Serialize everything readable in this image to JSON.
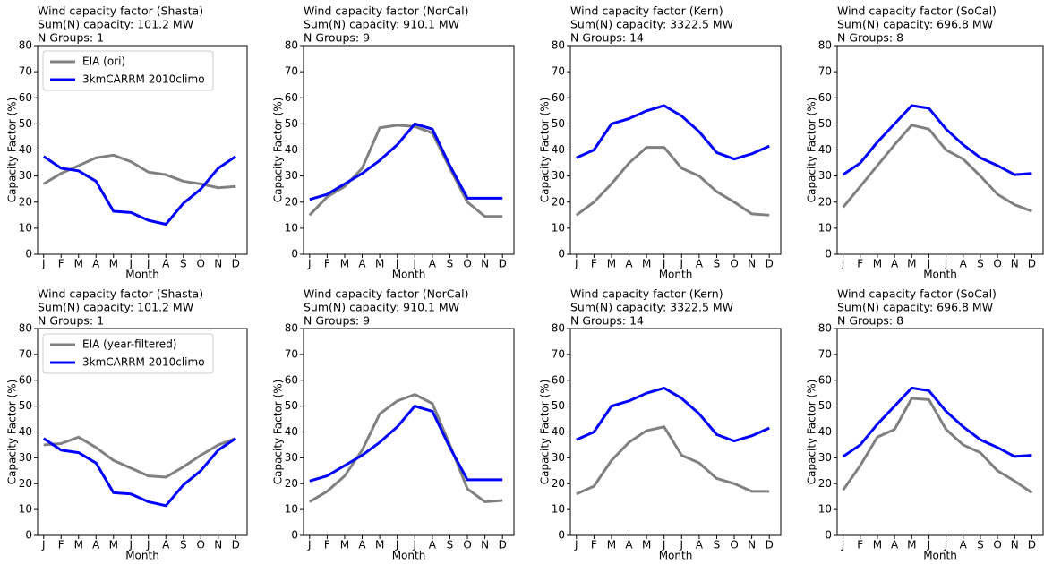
{
  "chart_data": [
    {
      "type": "line",
      "title": "Wind capacity factor (Shasta)",
      "subtitle": [
        "Sum(N) capacity: 101.2 MW",
        "N Groups: 1"
      ],
      "x_label": "Month",
      "y_label": "Capacity Factor (%)",
      "categories": [
        "J",
        "F",
        "M",
        "A",
        "M",
        "J",
        "J",
        "A",
        "S",
        "O",
        "N",
        "D"
      ],
      "ylim": [
        0,
        80
      ],
      "yticks": [
        0,
        10,
        20,
        30,
        40,
        50,
        60,
        70,
        80
      ],
      "legend": "upper left",
      "series": [
        {
          "name": "EIA (ori)",
          "color": "#808080",
          "values": [
            27,
            31,
            34,
            37,
            38,
            35.5,
            31.5,
            30.5,
            28,
            27,
            25.5,
            26
          ]
        },
        {
          "name": "3kmCARRM 2010climo",
          "color": "#0000ff",
          "values": [
            37.5,
            33,
            32,
            28,
            16.5,
            16,
            13,
            11.5,
            19.5,
            25,
            33,
            37.5
          ]
        }
      ]
    },
    {
      "type": "line",
      "title": "Wind capacity factor (NorCal)",
      "subtitle": [
        "Sum(N) capacity: 910.1 MW",
        "N Groups: 9"
      ],
      "x_label": "Month",
      "y_label": "Capacity Factor (%)",
      "categories": [
        "J",
        "F",
        "M",
        "A",
        "M",
        "J",
        "J",
        "A",
        "S",
        "O",
        "N",
        "D"
      ],
      "ylim": [
        0,
        80
      ],
      "yticks": [
        0,
        10,
        20,
        30,
        40,
        50,
        60,
        70,
        80
      ],
      "series": [
        {
          "color": "#808080",
          "values": [
            15,
            22,
            26,
            33,
            48.5,
            49.5,
            49,
            46.5,
            33,
            20,
            14.5,
            14.5
          ]
        },
        {
          "color": "#0000ff",
          "values": [
            21,
            23,
            27,
            31,
            36,
            42,
            50,
            48,
            34,
            21.5,
            21.5,
            21.5
          ]
        }
      ]
    },
    {
      "type": "line",
      "title": "Wind capacity factor (Kern)",
      "subtitle": [
        "Sum(N) capacity: 3322.5 MW",
        "N Groups: 14"
      ],
      "x_label": "Month",
      "y_label": "Capacity Factor (%)",
      "categories": [
        "J",
        "F",
        "M",
        "A",
        "M",
        "J",
        "J",
        "A",
        "S",
        "O",
        "N",
        "D"
      ],
      "ylim": [
        0,
        80
      ],
      "yticks": [
        0,
        10,
        20,
        30,
        40,
        50,
        60,
        70,
        80
      ],
      "series": [
        {
          "color": "#808080",
          "values": [
            15,
            20,
            27,
            35,
            41,
            41,
            33,
            30,
            24,
            20,
            15.5,
            15
          ]
        },
        {
          "color": "#0000ff",
          "values": [
            37,
            40,
            50,
            52,
            55,
            57,
            53,
            47,
            39,
            36.5,
            38.5,
            41.5
          ]
        }
      ]
    },
    {
      "type": "line",
      "title": "Wind capacity factor (SoCal)",
      "subtitle": [
        "Sum(N) capacity: 696.8 MW",
        "N Groups: 8"
      ],
      "x_label": "Month",
      "y_label": "Capacity Factor (%)",
      "categories": [
        "J",
        "F",
        "M",
        "A",
        "M",
        "J",
        "J",
        "A",
        "S",
        "O",
        "N",
        "D"
      ],
      "ylim": [
        0,
        80
      ],
      "yticks": [
        0,
        10,
        20,
        30,
        40,
        50,
        60,
        70,
        80
      ],
      "series": [
        {
          "color": "#808080",
          "values": [
            18,
            26,
            34,
            42,
            49.5,
            48,
            40,
            36.5,
            30,
            23,
            19,
            16.5
          ]
        },
        {
          "color": "#0000ff",
          "values": [
            30.5,
            35,
            43,
            50,
            57,
            56,
            48,
            42,
            37,
            34,
            30.5,
            31
          ]
        }
      ]
    },
    {
      "type": "line",
      "title": "Wind capacity factor (Shasta)",
      "subtitle": [
        "Sum(N) capacity: 101.2 MW",
        "N Groups: 1"
      ],
      "x_label": "Month",
      "y_label": "Capacity Factor (%)",
      "categories": [
        "J",
        "F",
        "M",
        "A",
        "M",
        "J",
        "J",
        "A",
        "S",
        "O",
        "N",
        "D"
      ],
      "ylim": [
        0,
        80
      ],
      "yticks": [
        0,
        10,
        20,
        30,
        40,
        50,
        60,
        70,
        80
      ],
      "legend": "upper left",
      "series": [
        {
          "name": "EIA (year-filtered)",
          "color": "#808080",
          "values": [
            35,
            35.5,
            38,
            34,
            29,
            26,
            23,
            22.5,
            26.5,
            31,
            35,
            37.5
          ]
        },
        {
          "name": "3kmCARRM 2010climo",
          "color": "#0000ff",
          "values": [
            37.5,
            33,
            32,
            28,
            16.5,
            16,
            13,
            11.5,
            19.5,
            25,
            33,
            37.5
          ]
        }
      ]
    },
    {
      "type": "line",
      "title": "Wind capacity factor (NorCal)",
      "subtitle": [
        "Sum(N) capacity: 910.1 MW",
        "N Groups: 9"
      ],
      "x_label": "Month",
      "y_label": "Capacity Factor (%)",
      "categories": [
        "J",
        "F",
        "M",
        "A",
        "M",
        "J",
        "J",
        "A",
        "S",
        "O",
        "N",
        "D"
      ],
      "ylim": [
        0,
        80
      ],
      "yticks": [
        0,
        10,
        20,
        30,
        40,
        50,
        60,
        70,
        80
      ],
      "series": [
        {
          "color": "#808080",
          "values": [
            13,
            17,
            23,
            33,
            47,
            52,
            54.5,
            51,
            35,
            18,
            13,
            13.5
          ]
        },
        {
          "color": "#0000ff",
          "values": [
            21,
            23,
            27,
            31,
            36,
            42,
            50,
            48,
            34,
            21.5,
            21.5,
            21.5
          ]
        }
      ]
    },
    {
      "type": "line",
      "title": "Wind capacity factor (Kern)",
      "subtitle": [
        "Sum(N) capacity: 3322.5 MW",
        "N Groups: 14"
      ],
      "x_label": "Month",
      "y_label": "Capacity Factor (%)",
      "categories": [
        "J",
        "F",
        "M",
        "A",
        "M",
        "J",
        "J",
        "A",
        "S",
        "O",
        "N",
        "D"
      ],
      "ylim": [
        0,
        80
      ],
      "yticks": [
        0,
        10,
        20,
        30,
        40,
        50,
        60,
        70,
        80
      ],
      "series": [
        {
          "color": "#808080",
          "values": [
            16,
            19,
            29,
            36,
            40.5,
            42,
            31,
            28,
            22,
            20,
            17,
            17
          ]
        },
        {
          "color": "#0000ff",
          "values": [
            37,
            40,
            50,
            52,
            55,
            57,
            53,
            47,
            39,
            36.5,
            38.5,
            41.5
          ]
        }
      ]
    },
    {
      "type": "line",
      "title": "Wind capacity factor (SoCal)",
      "subtitle": [
        "Sum(N) capacity: 696.8 MW",
        "N Groups: 8"
      ],
      "x_label": "Month",
      "y_label": "Capacity Factor (%)",
      "categories": [
        "J",
        "F",
        "M",
        "A",
        "M",
        "J",
        "J",
        "A",
        "S",
        "O",
        "N",
        "D"
      ],
      "ylim": [
        0,
        80
      ],
      "yticks": [
        0,
        10,
        20,
        30,
        40,
        50,
        60,
        70,
        80
      ],
      "series": [
        {
          "color": "#808080",
          "values": [
            17.5,
            27,
            38,
            41,
            53,
            52.5,
            41,
            35,
            32,
            25,
            21,
            16.5
          ]
        },
        {
          "color": "#0000ff",
          "values": [
            30.5,
            35,
            43,
            50,
            57,
            56,
            48,
            42,
            37,
            34,
            30.5,
            31
          ]
        }
      ]
    }
  ]
}
